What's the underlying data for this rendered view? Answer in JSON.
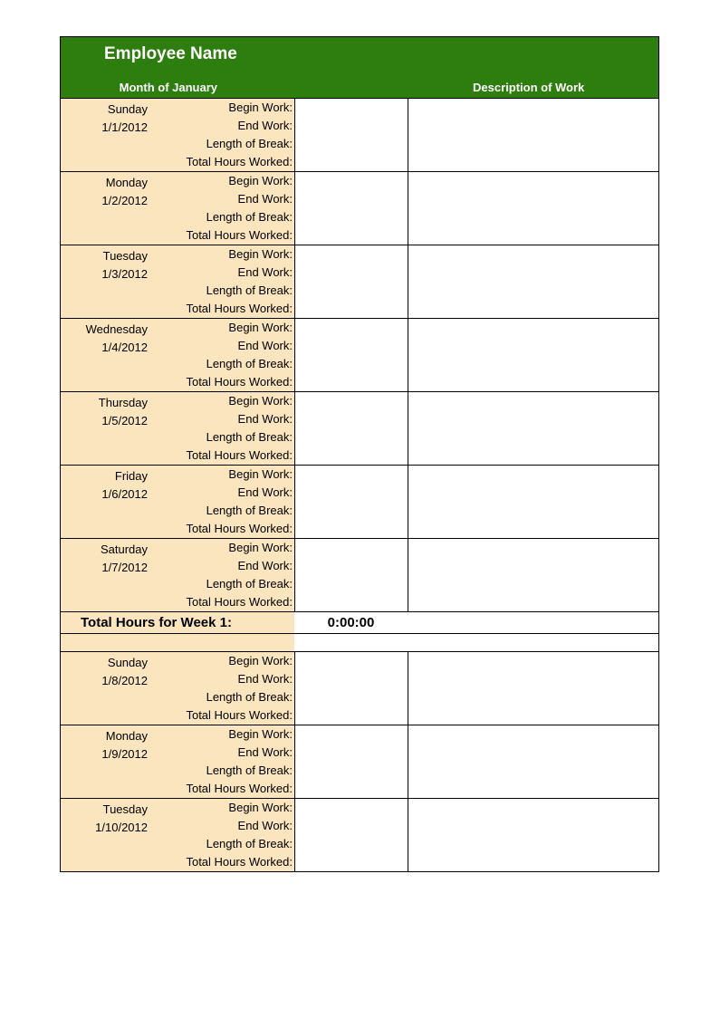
{
  "colors": {
    "header_bg": "#2e7d0f",
    "header_text": "#ffffff",
    "day_bg": "#fae5bf",
    "border": "#000000",
    "page_bg": "#ffffff",
    "text": "#000000"
  },
  "typography": {
    "title_fontsize": 19,
    "title_weight": "bold",
    "header_col_fontsize": 13,
    "body_fontsize": 13,
    "total_fontsize": 15
  },
  "layout": {
    "sheet_width": 662,
    "col_left_width": 258,
    "col_mid_width": 125,
    "day_name_col_width": 102,
    "row_line_height": 20
  },
  "header": {
    "title": "Employee Name",
    "left_label": "Month of January",
    "right_label": "Description of Work"
  },
  "row_labels": {
    "begin": "Begin Work:",
    "end": "End Work:",
    "break": "Length of Break:",
    "total": "Total Hours Worked:"
  },
  "week1": {
    "days": [
      {
        "name": "Sunday",
        "date": "1/1/2012"
      },
      {
        "name": "Monday",
        "date": "1/2/2012"
      },
      {
        "name": "Tuesday",
        "date": "1/3/2012"
      },
      {
        "name": "Wednesday",
        "date": "1/4/2012"
      },
      {
        "name": "Thursday",
        "date": "1/5/2012"
      },
      {
        "name": "Friday",
        "date": "1/6/2012"
      },
      {
        "name": "Saturday",
        "date": "1/7/2012"
      }
    ],
    "total_label": "Total Hours for Week 1:",
    "total_value": "0:00:00"
  },
  "week2": {
    "days": [
      {
        "name": "Sunday",
        "date": "1/8/2012"
      },
      {
        "name": "Monday",
        "date": "1/9/2012"
      },
      {
        "name": "Tuesday",
        "date": "1/10/2012"
      }
    ]
  }
}
